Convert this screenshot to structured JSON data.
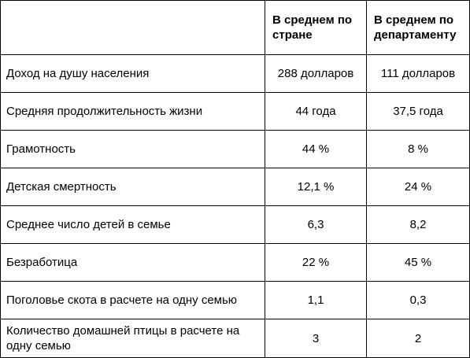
{
  "table": {
    "headers": {
      "label": "",
      "country": "В среднем по стране",
      "department": "В среднем по департаменту"
    },
    "rows": [
      {
        "label": "Доход на душу населения",
        "country": "288 долларов",
        "department": "111 долларов"
      },
      {
        "label": "Средняя продолжительность жизни",
        "country": "44 года",
        "department": "37,5 года"
      },
      {
        "label": "Грамотность",
        "country": "44 %",
        "department": "8 %"
      },
      {
        "label": "Детская смертность",
        "country": "12,1 %",
        "department": "24 %"
      },
      {
        "label": "Среднее число детей в семье",
        "country": "6,3",
        "department": "8,2"
      },
      {
        "label": "Безработица",
        "country": "22 %",
        "department": "45 %"
      },
      {
        "label": "Поголовье скота в расчете на одну семью",
        "country": "1,1",
        "department": "0,3"
      },
      {
        "label": "Количество домашней птицы в расчете на одну семью",
        "country": "3",
        "department": "2"
      }
    ]
  }
}
